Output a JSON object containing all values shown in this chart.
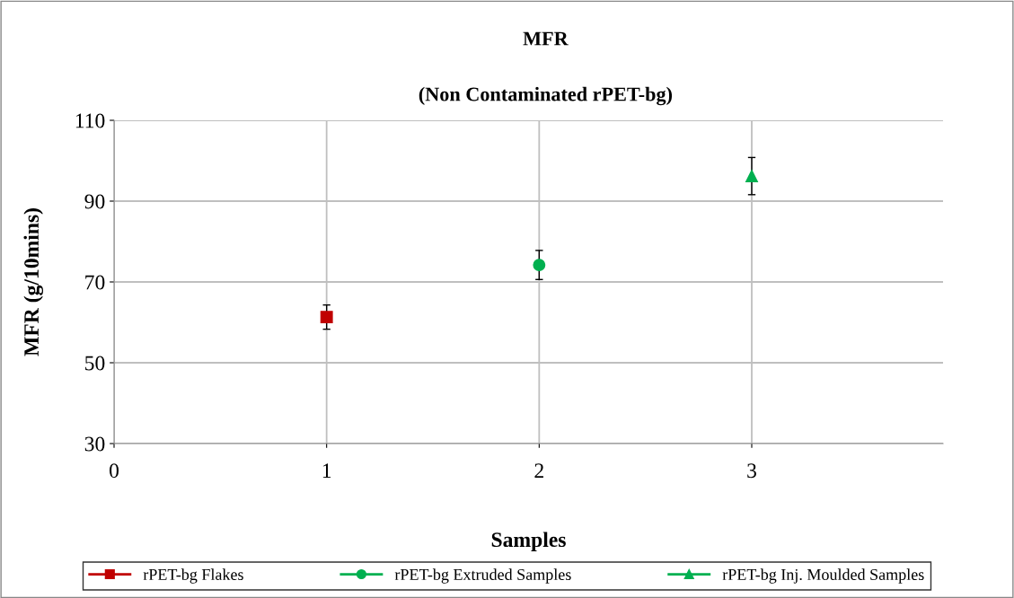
{
  "chart_data": {
    "type": "scatter",
    "title": "MFR",
    "subtitle": "(Non Contaminated rPET-bg)",
    "xlabel": "Samples",
    "ylabel": "MFR (g/10mins)",
    "xlim": [
      0,
      3.9
    ],
    "xticks": [
      0,
      1,
      2,
      3
    ],
    "ylim": [
      30,
      110
    ],
    "yticks": [
      30,
      50,
      70,
      90,
      110
    ],
    "grid": true,
    "legend": "bottom",
    "series": [
      {
        "name": "rPET-bg Flakes",
        "color": "#c00000",
        "marker": "square",
        "x": [
          1
        ],
        "values": [
          61.3
        ],
        "errors": [
          3
        ]
      },
      {
        "name": "rPET-bg Extruded Samples",
        "color": "#00b050",
        "marker": "circle",
        "x": [
          2
        ],
        "values": [
          74.2
        ],
        "errors": [
          3.6
        ]
      },
      {
        "name": "rPET-bg Inj. Moulded Samples",
        "color": "#00b050",
        "marker": "triangle",
        "x": [
          3
        ],
        "values": [
          96.2
        ],
        "errors": [
          4.6
        ]
      }
    ]
  }
}
